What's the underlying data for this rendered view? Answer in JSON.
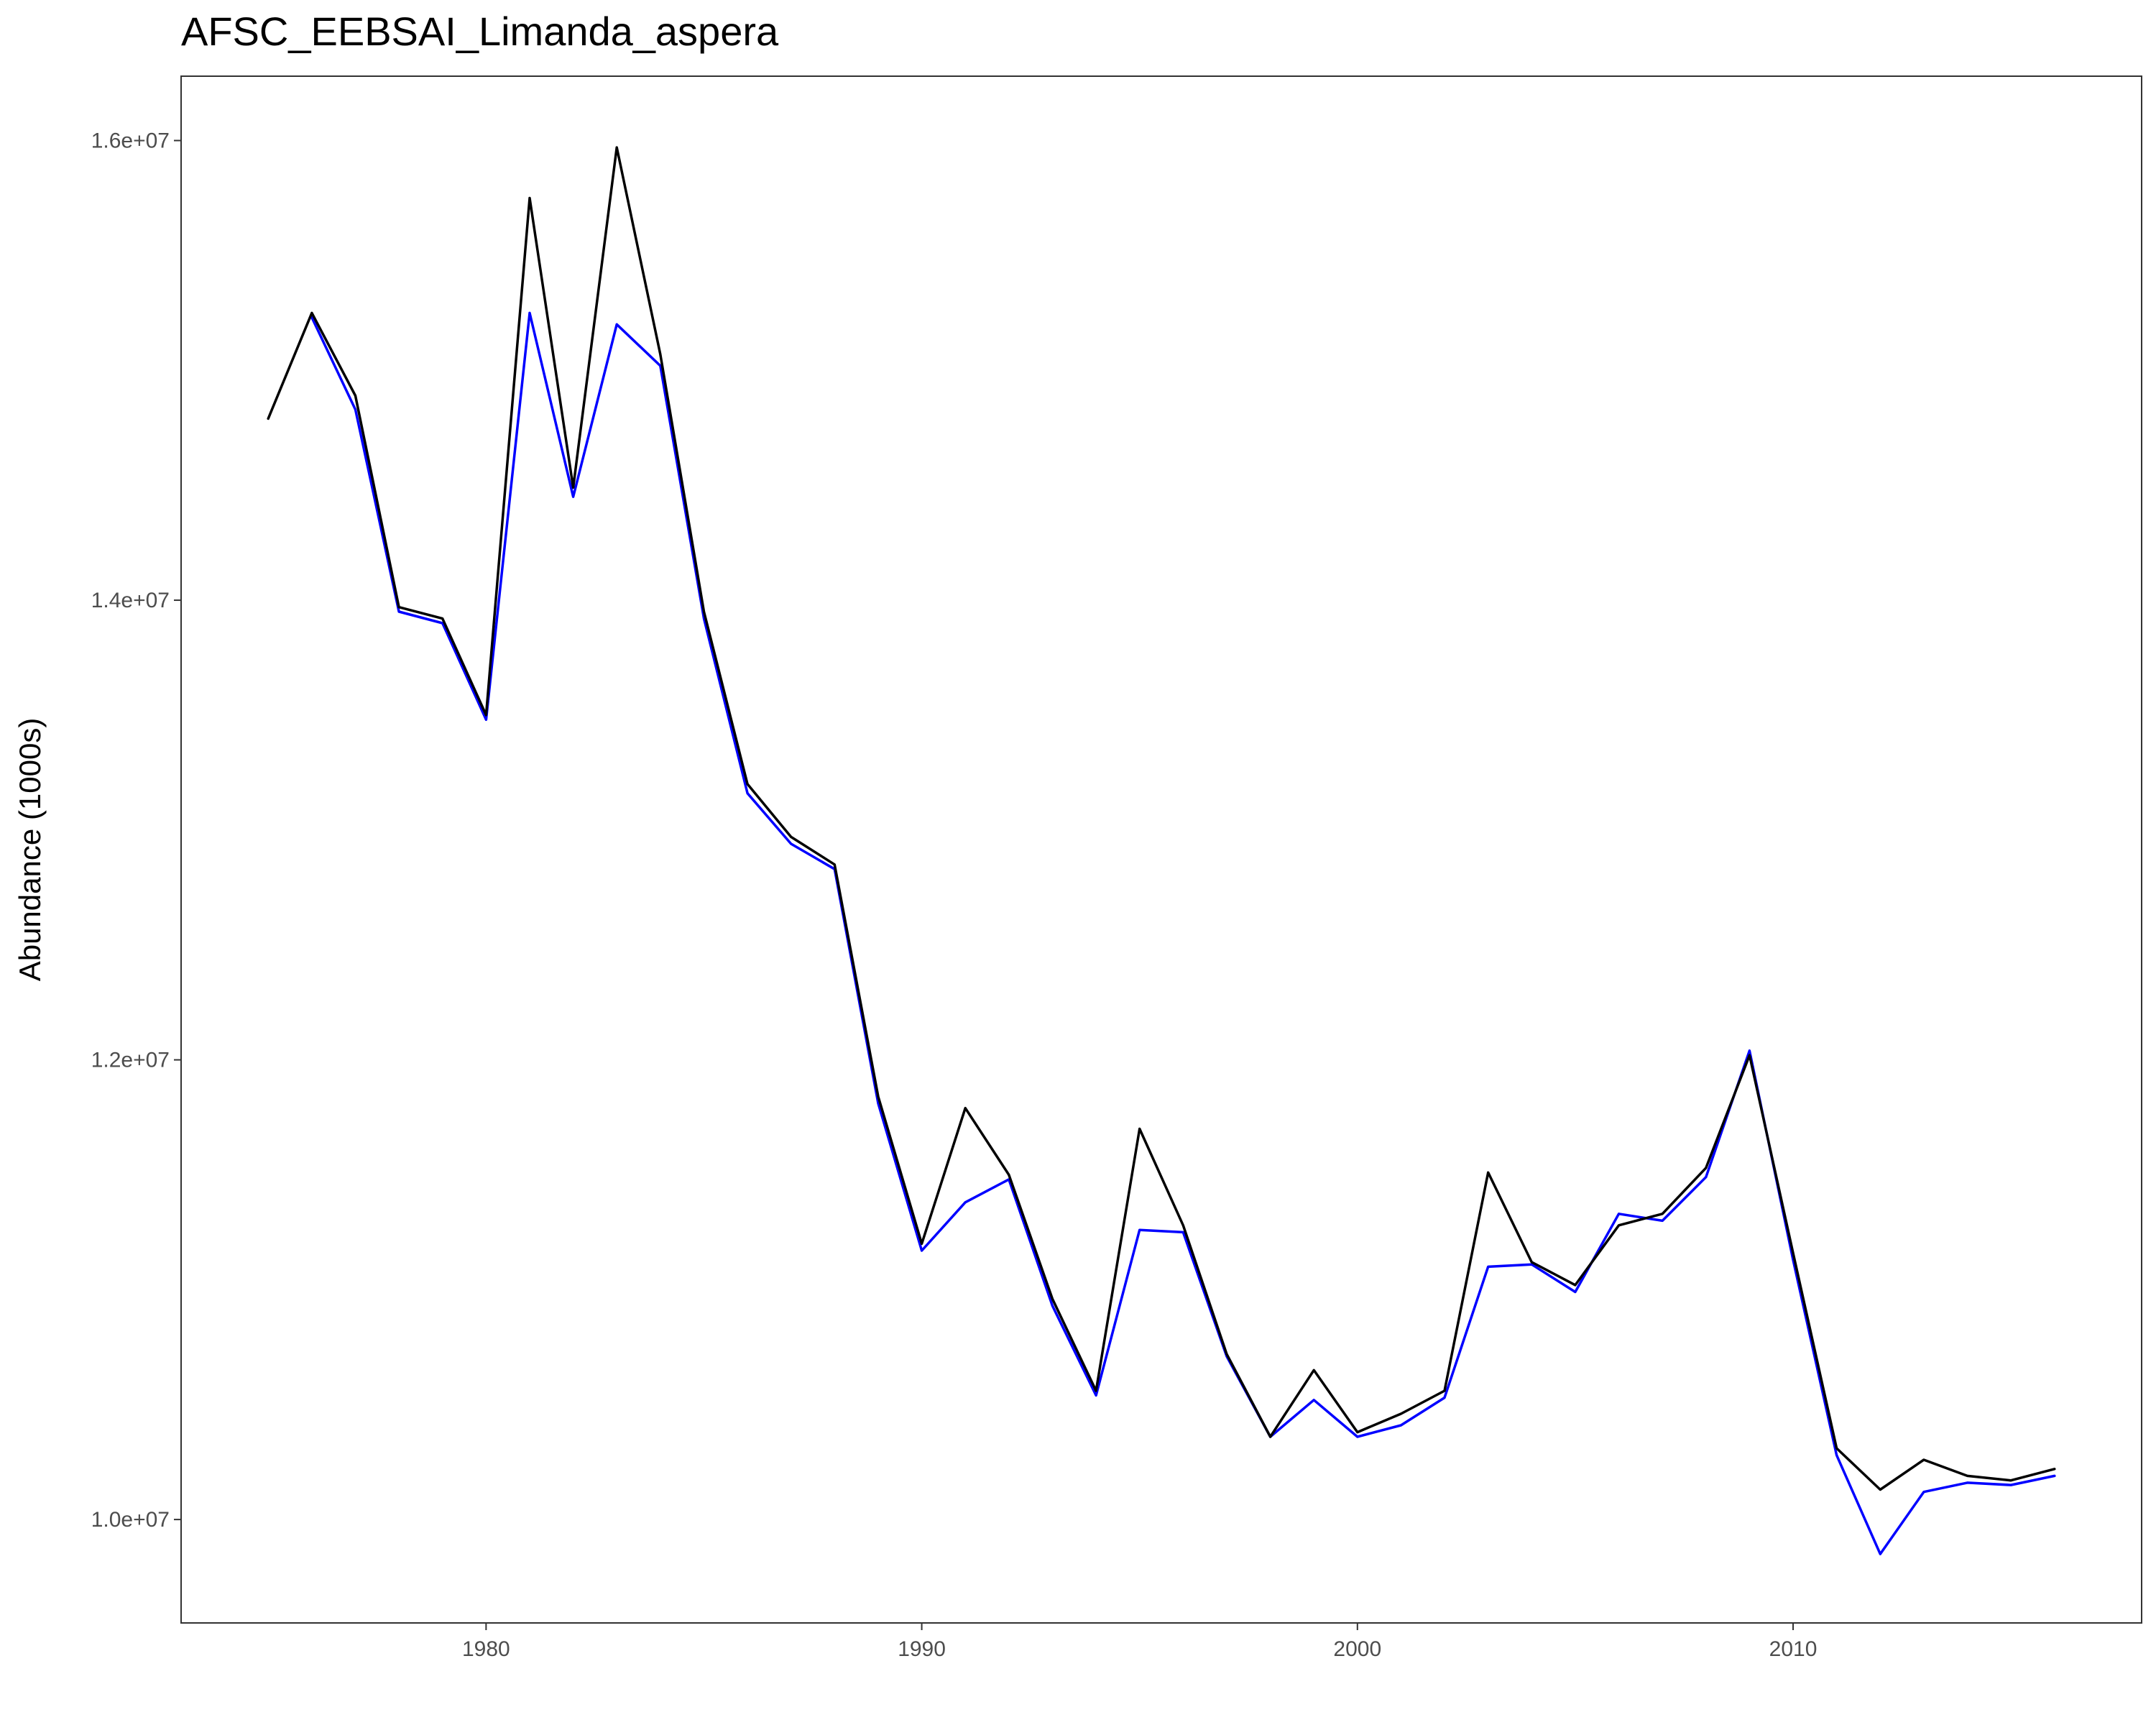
{
  "chart_data": {
    "type": "line",
    "title": "AFSC_EEBSAI_Limanda_aspera",
    "xlabel": "",
    "ylabel": "Abundance (1000s)",
    "xlim": [
      1973,
      2018
    ],
    "ylim": [
      9550000,
      16280000
    ],
    "x_ticks": [
      1980,
      1990,
      2000,
      2010
    ],
    "y_ticks": [
      10000000,
      12000000,
      14000000,
      16000000
    ],
    "x_tick_labels": [
      "1980",
      "1990",
      "2000",
      "2010"
    ],
    "y_tick_labels": [
      "1.0e+07",
      "1.2e+07",
      "1.4e+07",
      "1.6e+07"
    ],
    "grid": false,
    "legend": "none",
    "series": [
      {
        "color": "#0000ff",
        "x": [
          1976,
          1977,
          1978,
          1979,
          1980,
          1981,
          1982,
          1983,
          1984,
          1985,
          1986,
          1987,
          1988,
          1989,
          1990,
          1991,
          1992,
          1993,
          1994,
          1995,
          1996,
          1997,
          1998,
          1999,
          2000,
          2001,
          2002,
          2003,
          2004,
          2005,
          2006,
          2007,
          2008,
          2009,
          2010,
          2011,
          2012,
          2013,
          2014,
          2015,
          2016
        ],
        "values": [
          15230000,
          14830000,
          13950000,
          13900000,
          13480000,
          15250000,
          14450000,
          15200000,
          15020000,
          13920000,
          13160000,
          12940000,
          12830000,
          11810000,
          11170000,
          11380000,
          11480000,
          10930000,
          10540000,
          11260000,
          11250000,
          10710000,
          10360000,
          10520000,
          10360000,
          10410000,
          10530000,
          11100000,
          11110000,
          10990000,
          11330000,
          11300000,
          11490000,
          12040000,
          11130000,
          10280000,
          9850000,
          10120000,
          10160000,
          10150000,
          10190000
        ]
      },
      {
        "color": "#000000",
        "x": [
          1975,
          1976,
          1977,
          1978,
          1979,
          1980,
          1981,
          1982,
          1983,
          1984,
          1985,
          1986,
          1987,
          1988,
          1989,
          1990,
          1991,
          1992,
          1993,
          1994,
          1995,
          1996,
          1997,
          1998,
          1999,
          2000,
          2001,
          2002,
          2003,
          2004,
          2005,
          2006,
          2007,
          2008,
          2009,
          2010,
          2011,
          2012,
          2013,
          2014,
          2015,
          2016
        ],
        "values": [
          14790000,
          15250000,
          14890000,
          13970000,
          13920000,
          13500000,
          15750000,
          14490000,
          15970000,
          15070000,
          13950000,
          13200000,
          12970000,
          12850000,
          11840000,
          11200000,
          11790000,
          11500000,
          10960000,
          10560000,
          11700000,
          11280000,
          10720000,
          10360000,
          10650000,
          10380000,
          10460000,
          10560000,
          11510000,
          11120000,
          11020000,
          11280000,
          11330000,
          11530000,
          12020000,
          11160000,
          10310000,
          10130000,
          10260000,
          10190000,
          10170000,
          10220000
        ]
      }
    ]
  }
}
